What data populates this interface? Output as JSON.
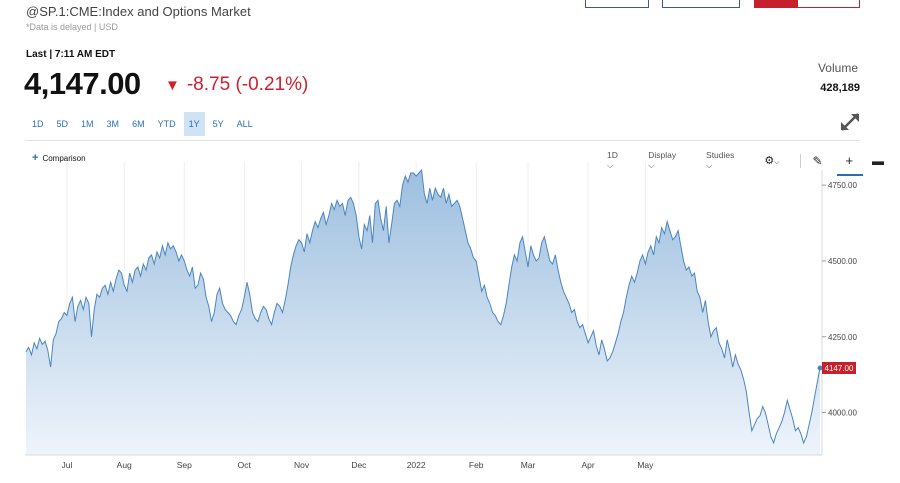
{
  "header": {
    "title": "@SP.1:CME:Index and Options Market",
    "delay_note": "*Data is delayed | USD",
    "last_label": "Last | 7:11 AM EDT",
    "price": "4,147.00",
    "change": "-8.75 (-0.21%)",
    "change_direction_icon": "down-triangle-icon",
    "volume_label": "Volume",
    "volume_value": "428,189"
  },
  "colors": {
    "accent": "#2a6fb3",
    "down": "#d0202e",
    "area_top": "#9dbfdf",
    "area_bottom": "#eef4fb",
    "line": "#4a86bf"
  },
  "ranges": [
    {
      "label": "1D",
      "active": false
    },
    {
      "label": "5D",
      "active": false
    },
    {
      "label": "1M",
      "active": false
    },
    {
      "label": "3M",
      "active": false
    },
    {
      "label": "6M",
      "active": false
    },
    {
      "label": "YTD",
      "active": false
    },
    {
      "label": "1Y",
      "active": true
    },
    {
      "label": "5Y",
      "active": false
    },
    {
      "label": "ALL",
      "active": false
    }
  ],
  "toolbar": {
    "comparison_label": "Comparison",
    "interval_label": "1D",
    "display_label": "Display",
    "studies_label": "Studies"
  },
  "chart_data": {
    "type": "area",
    "xlabel": "",
    "ylabel": "",
    "ylim": [
      3860,
      4800
    ],
    "yticks": [
      4750,
      4500,
      4250,
      4000
    ],
    "ytick_labels": [
      "4750.00",
      "4500.00",
      "4250.00",
      "4000.00"
    ],
    "xtick_labels": [
      "Jul",
      "Aug",
      "Sep",
      "Oct",
      "Nov",
      "Dec",
      "2022",
      "Feb",
      "Mar",
      "Apr",
      "May"
    ],
    "xtick_index": [
      15,
      36,
      58,
      80,
      101,
      122,
      143,
      165,
      184,
      206,
      227
    ],
    "last_value_label": "4147.00",
    "last_value": 4147,
    "series": [
      {
        "values": [
          4200,
          4215,
          4190,
          4230,
          4210,
          4245,
          4225,
          4235,
          4205,
          4150,
          4240,
          4260,
          4300,
          4310,
          4330,
          4320,
          4360,
          4380,
          4300,
          4350,
          4370,
          4340,
          4380,
          4360,
          4250,
          4340,
          4390,
          4380,
          4410,
          4420,
          4390,
          4430,
          4400,
          4440,
          4470,
          4460,
          4420,
          4400,
          4460,
          4430,
          4470,
          4480,
          4450,
          4490,
          4470,
          4510,
          4520,
          4490,
          4530,
          4510,
          4550,
          4520,
          4560,
          4540,
          4550,
          4530,
          4500,
          4520,
          4500,
          4470,
          4450,
          4480,
          4410,
          4420,
          4460,
          4440,
          4380,
          4350,
          4300,
          4330,
          4390,
          4410,
          4360,
          4340,
          4330,
          4320,
          4300,
          4290,
          4320,
          4340,
          4380,
          4430,
          4390,
          4330,
          4310,
          4300,
          4330,
          4350,
          4340,
          4310,
          4290,
          4330,
          4360,
          4350,
          4330,
          4370,
          4420,
          4480,
          4520,
          4550,
          4570,
          4560,
          4530,
          4590,
          4560,
          4600,
          4630,
          4610,
          4640,
          4660,
          4620,
          4650,
          4690,
          4670,
          4700,
          4680,
          4690,
          4650,
          4700,
          4710,
          4690,
          4650,
          4580,
          4540,
          4620,
          4600,
          4650,
          4560,
          4690,
          4700,
          4640,
          4600,
          4680,
          4560,
          4620,
          4690,
          4700,
          4680,
          4750,
          4780,
          4760,
          4790,
          4790,
          4780,
          4790,
          4800,
          4720,
          4690,
          4740,
          4700,
          4740,
          4720,
          4710,
          4740,
          4690,
          4720,
          4680,
          4690,
          4700,
          4680,
          4640,
          4600,
          4560,
          4540,
          4510,
          4500,
          4450,
          4400,
          4420,
          4380,
          4360,
          4330,
          4320,
          4300,
          4290,
          4320,
          4360,
          4420,
          4480,
          4520,
          4500,
          4560,
          4580,
          4530,
          4480,
          4550,
          4520,
          4500,
          4510,
          4560,
          4580,
          4540,
          4500,
          4490,
          4520,
          4470,
          4430,
          4400,
          4380,
          4360,
          4330,
          4340,
          4300,
          4280,
          4290,
          4260,
          4230,
          4250,
          4270,
          4220,
          4190,
          4240,
          4210,
          4170,
          4180,
          4200,
          4230,
          4260,
          4300,
          4330,
          4380,
          4420,
          4450,
          4430,
          4460,
          4500,
          4520,
          4490,
          4530,
          4550,
          4520,
          4580,
          4560,
          4610,
          4590,
          4630,
          4600,
          4570,
          4580,
          4600,
          4550,
          4500,
          4470,
          4480,
          4450,
          4460,
          4400,
          4380,
          4330,
          4370,
          4300,
          4250,
          4270,
          4280,
          4230,
          4210,
          4180,
          4240,
          4200,
          4150,
          4190,
          4160,
          4140,
          4110,
          4070,
          4000,
          3940,
          3960,
          3980,
          3990,
          4020,
          4000,
          3960,
          3920,
          3900,
          3930,
          3950,
          3970,
          4000,
          4040,
          4010,
          3980,
          3940,
          3950,
          3930,
          3900,
          3920,
          3960,
          4000,
          4050,
          4100,
          4147
        ]
      }
    ]
  }
}
